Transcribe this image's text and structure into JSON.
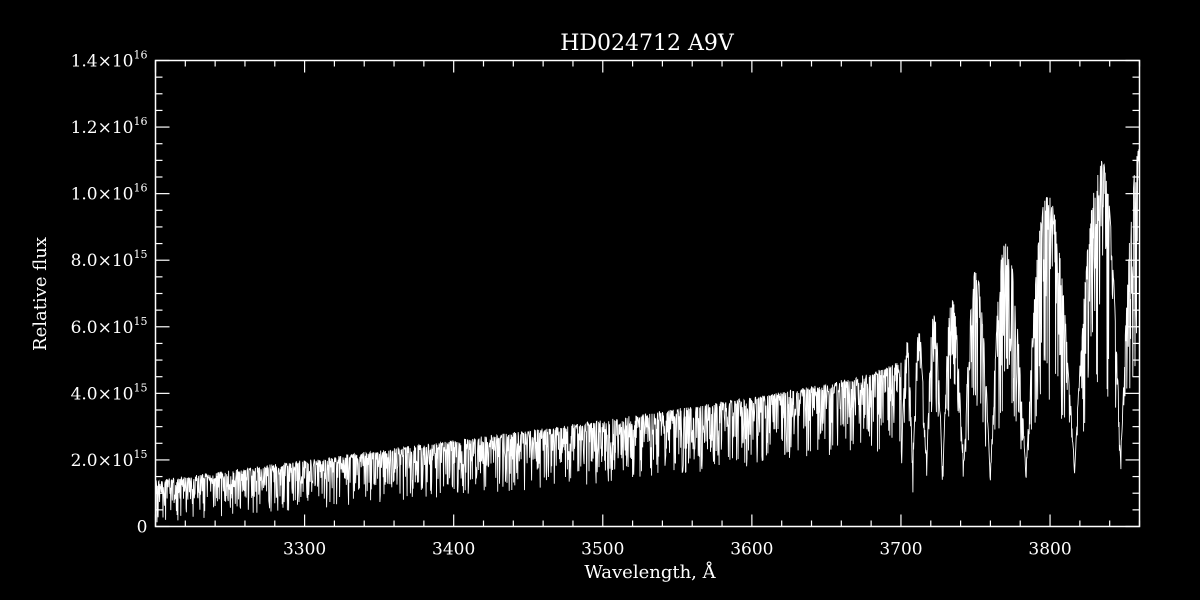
{
  "chart_data": {
    "type": "line",
    "title": "HD024712   A9V",
    "xlabel": "Wavelength, Å",
    "ylabel": "Relative flux",
    "xlim": [
      3200,
      3860
    ],
    "ylim": [
      0,
      1.4e+16
    ],
    "x_ticks": [
      {
        "value": 3300,
        "label": "3300"
      },
      {
        "value": 3400,
        "label": "3400"
      },
      {
        "value": 3500,
        "label": "3500"
      },
      {
        "value": 3600,
        "label": "3600"
      },
      {
        "value": 3700,
        "label": "3700"
      },
      {
        "value": 3800,
        "label": "3800"
      }
    ],
    "y_ticks": [
      {
        "value": 0,
        "mantissa": "0",
        "exponent": ""
      },
      {
        "value": 2000000000000000.0,
        "mantissa": "2.0×10",
        "exponent": "15"
      },
      {
        "value": 4000000000000000.0,
        "mantissa": "4.0×10",
        "exponent": "15"
      },
      {
        "value": 6000000000000000.0,
        "mantissa": "6.0×10",
        "exponent": "15"
      },
      {
        "value": 8000000000000000.0,
        "mantissa": "8.0×10",
        "exponent": "15"
      },
      {
        "value": 1e+16,
        "mantissa": "1.0×10",
        "exponent": "16"
      },
      {
        "value": 1.2e+16,
        "mantissa": "1.2×10",
        "exponent": "16"
      },
      {
        "value": 1.4e+16,
        "mantissa": "1.4×10",
        "exponent": "16"
      }
    ],
    "grid": false,
    "line_color": "#ffffff",
    "background": "#000000",
    "series": [
      {
        "envelope_x": [
          3200,
          3250,
          3300,
          3350,
          3400,
          3450,
          3500,
          3550,
          3600,
          3650,
          3680,
          3700
        ],
        "upper_flux": [
          1400000000000000.0,
          1700000000000000.0,
          2000000000000000.0,
          2300000000000000.0,
          2600000000000000.0,
          2900000000000000.0,
          3200000000000000.0,
          3550000000000000.0,
          3900000000000000.0,
          4300000000000000.0,
          4600000000000000.0,
          5000000000000000.0
        ],
        "lower_flux": [
          400000000000000.0,
          600000000000000.0,
          800000000000000.0,
          1000000000000000.0,
          1200000000000000.0,
          1400000000000000.0,
          1600000000000000.0,
          1850000000000000.0,
          2100000000000000.0,
          2400000000000000.0,
          2700000000000000.0,
          3000000000000000.0
        ],
        "balmer_lines": [
          {
            "x": 3704,
            "peak": 5600000000000000.0,
            "trough": 3200000000000000.0
          },
          {
            "x": 3712,
            "peak": 5900000000000000.0,
            "trough": 3100000000000000.0
          },
          {
            "x": 3722,
            "peak": 6400000000000000.0,
            "trough": 3000000000000000.0
          },
          {
            "x": 3734,
            "peak": 6900000000000000.0,
            "trough": 2800000000000000.0
          },
          {
            "x": 3750,
            "peak": 7700000000000000.0,
            "trough": 2400000000000000.0
          },
          {
            "x": 3770,
            "peak": 8600000000000000.0,
            "trough": 2200000000000000.0
          },
          {
            "x": 3798,
            "peak": 1e+16,
            "trough": 2500000000000000.0
          },
          {
            "x": 3835,
            "peak": 1.1e+16,
            "trough": 2300000000000000.0
          },
          {
            "x": 3860,
            "peak": 1.14e+16,
            "trough": 3000000000000000.0
          }
        ]
      }
    ]
  }
}
